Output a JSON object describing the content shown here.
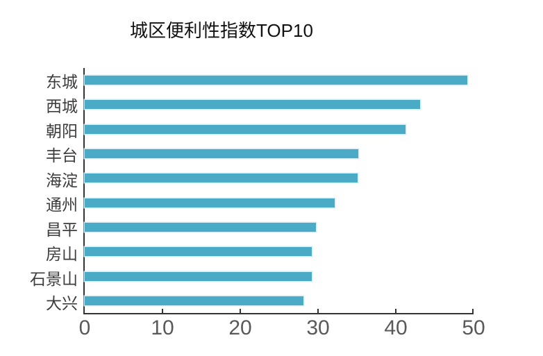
{
  "title": "城区便利性指数TOP10",
  "colors": {
    "bar_fill": "#4BAAC5",
    "bar_halo": "#D3ECF6",
    "axis_line": "#333333",
    "title_text": "#111111",
    "category_text": "#3D3D3D",
    "tick_text": "#595959",
    "background": "#FFFFFF"
  },
  "chart_data": {
    "type": "bar",
    "orientation": "horizontal",
    "title": "城区便利性指数TOP10",
    "categories": [
      "东城",
      "西城",
      "朝阳",
      "丰台",
      "海淀",
      "通州",
      "昌平",
      "房山",
      "石景山",
      "大兴"
    ],
    "values": [
      49.4,
      43.3,
      41.4,
      35.3,
      35.2,
      32.3,
      29.8,
      29.3,
      29.3,
      28.2
    ],
    "xlabel": "",
    "ylabel": "",
    "xlim": [
      0,
      50
    ],
    "xticks": [
      0,
      10,
      20,
      30,
      40,
      50
    ],
    "grid": false,
    "legend": false,
    "data_labels": false,
    "bar_color": "#4BAAC5"
  }
}
